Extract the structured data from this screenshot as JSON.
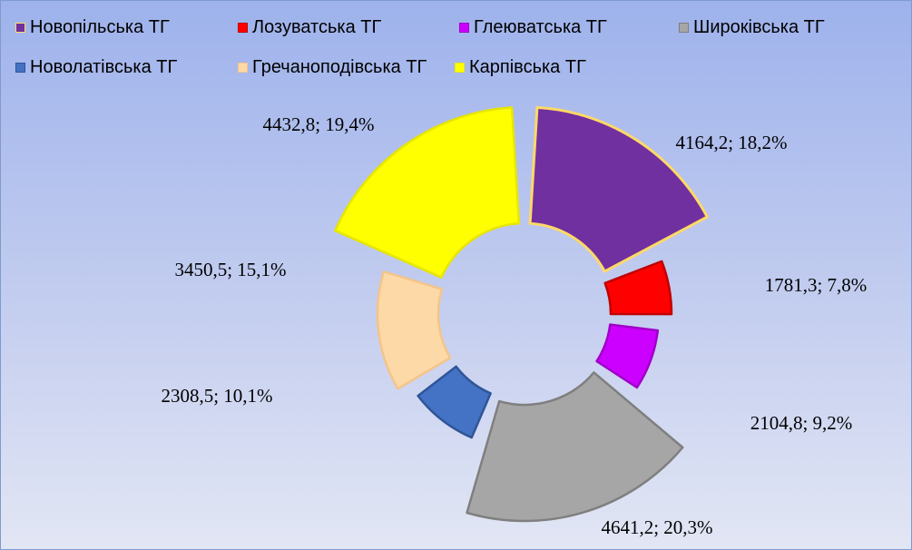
{
  "chart_data": {
    "type": "pie",
    "variant": "exploded-doughnut",
    "title": "",
    "legend_position": "top",
    "series": [
      {
        "categories": [
          "Новопільська ТГ",
          "Лозуватська ТГ",
          "Глеюватська ТГ",
          "Широківська ТГ",
          "Новолатівська ТГ",
          "Гречаноподівська ТГ",
          "Карпівська ТГ"
        ],
        "values": [
          4164.2,
          1781.3,
          2104.8,
          4641.2,
          2308.5,
          3450.5,
          4432.8
        ],
        "percents": [
          "18,2%",
          "7,8%",
          "9,2%",
          "20,3%",
          "10,1%",
          "15,1%",
          "19,4%"
        ],
        "data_labels": [
          "4164,2;  18,2%",
          "1781,3;  7,8%",
          "2104,8;  9,2%",
          "4641,2;  20,3%",
          "2308,5;  10,1%",
          "3450,5;  15,1%",
          "4432,8;  19,4%"
        ],
        "colors": [
          "#7030a0",
          "#ff0000",
          "#cc00ff",
          "#a6a6a6",
          "#4472c4",
          "#fdd9a7",
          "#ffff00"
        ],
        "border_colors": [
          "#ffd966",
          "#c00000",
          "#a000c8",
          "#7f7f7f",
          "#2f5597",
          "#f4c48a",
          "#e6e600"
        ]
      }
    ]
  }
}
